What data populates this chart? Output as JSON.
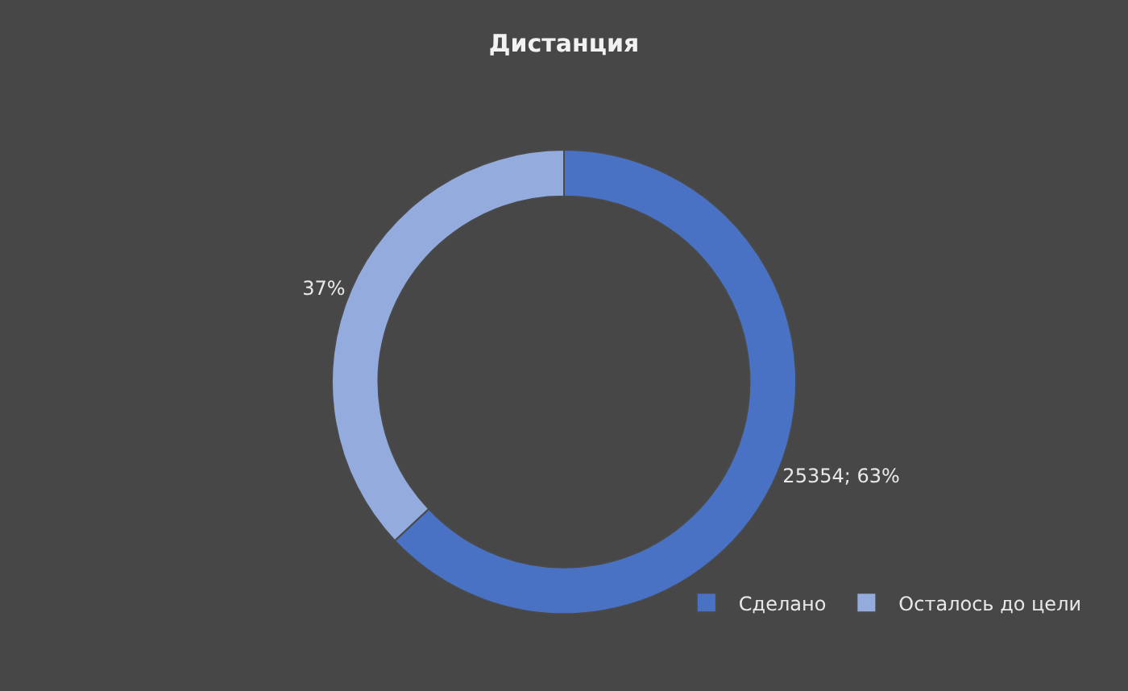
{
  "chart_data": {
    "type": "donut",
    "title": "Дистанция",
    "categories": [
      "Сделано",
      "Осталось до цели"
    ],
    "values": [
      63,
      37
    ],
    "colors": [
      "#4a72c4",
      "#94abde"
    ],
    "value_labels": [
      "25354; 63%",
      "37%"
    ],
    "legend": "bottom right"
  }
}
